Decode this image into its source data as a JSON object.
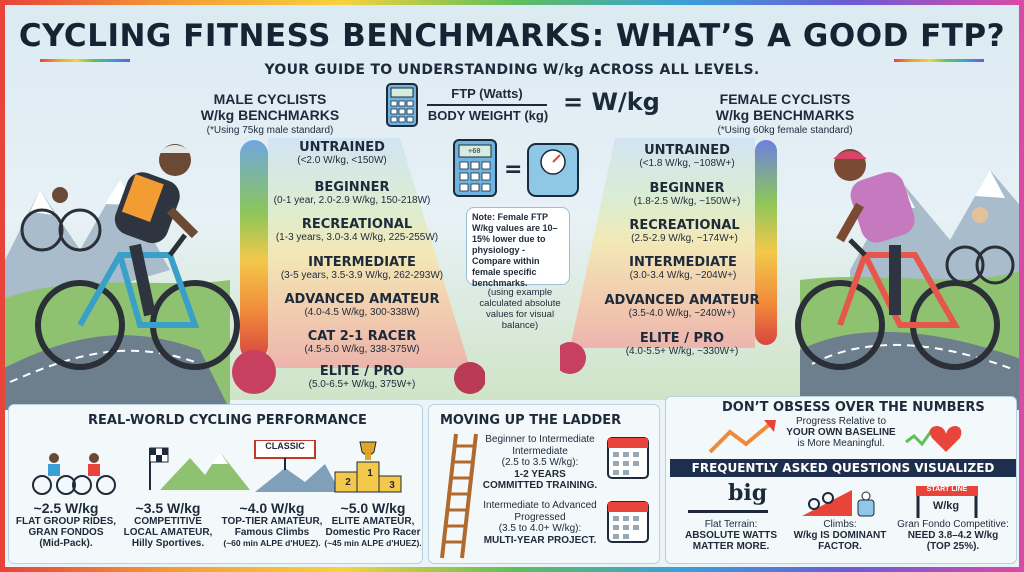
{
  "header": {
    "title": "CYCLING FITNESS BENCHMARKS: WHAT’S A GOOD FTP?",
    "subtitle": "YOUR GUIDE TO UNDERSTANDING W/kg ACROSS ALL LEVELS."
  },
  "formula": {
    "numerator": "FTP (Watts)",
    "denominator": "BODY WEIGHT (kg)",
    "result": "= W/kg",
    "mini_screen": "÷60"
  },
  "male": {
    "heading_1": "MALE CYCLISTS",
    "heading_2": "W/kg BENCHMARKS",
    "note": "(*Using 75kg male standard)",
    "levels": [
      {
        "name": "UNTRAINED",
        "detail": "(<2.0 W/kg, <150W)"
      },
      {
        "name": "BEGINNER",
        "detail": "(0-1 year, 2.0-2.9 W/kg, 150-218W)"
      },
      {
        "name": "RECREATIONAL",
        "detail": "(1-3 years, 3.0-3.4 W/kg, 225-255W)"
      },
      {
        "name": "INTERMEDIATE",
        "detail": "(3-5 years, 3.5-3.9 W/kg, 262-293W)"
      },
      {
        "name": "ADVANCED AMATEUR",
        "detail": "(4.0-4.5 W/kg, 300-338W)"
      },
      {
        "name": "CAT 2-1 RACER",
        "detail": "(4.5-5.0 W/kg, 338-375W)"
      },
      {
        "name": "ELITE / PRO",
        "detail": "(5.0-6.5+ W/kg, 375W+)"
      }
    ]
  },
  "female": {
    "heading_1": "FEMALE CYCLISTS",
    "heading_2": "W/kg BENCHMARKS",
    "note": "(*Using 60kg female standard)",
    "levels": [
      {
        "name": "UNTRAINED",
        "detail": "(<1.8 W/kg, ~108W+)"
      },
      {
        "name": "BEGINNER",
        "detail": "(1.8-2.5 W/kg, ~150W+)"
      },
      {
        "name": "RECREATIONAL",
        "detail": "(2.5-2.9 W/kg, ~174W+)"
      },
      {
        "name": "INTERMEDIATE",
        "detail": "(3.0-3.4 W/kg, ~204W+)"
      },
      {
        "name": "ADVANCED AMATEUR",
        "detail": "(3.5-4.0 W/kg, ~240W+)"
      },
      {
        "name": "ELITE / PRO",
        "detail": "(4.0-5.5+ W/kg, ~330W+)"
      }
    ]
  },
  "center": {
    "note": "Note: Female FTP W/kg values are 10–15% lower due to physiology - Compare within female specific benchmarks.",
    "example": "(using example calculated absolute values for visual balance)"
  },
  "performance": {
    "title": "REAL-WORLD CYCLING PERFORMANCE",
    "sign": "CLASSIC",
    "podium": [
      "2",
      "1",
      "3"
    ],
    "items": [
      {
        "value": "~2.5 W/kg",
        "line1": "FLAT GROUP RIDES,",
        "line2": "GRAN FONDOS",
        "line3": "(Mid-Pack)."
      },
      {
        "value": "~3.5 W/kg",
        "line1": "COMPETITIVE",
        "line2": "LOCAL AMATEUR,",
        "line3": "Hilly Sportives."
      },
      {
        "value": "~4.0 W/kg",
        "line1": "TOP-TIER AMATEUR,",
        "line2": "Famous Climbs",
        "line3": "(~60 min ALPE d'HUEZ)."
      },
      {
        "value": "~5.0 W/kg",
        "line1": "ELITE AMATEUR,",
        "line2": "Domestic Pro Racer",
        "line3": "(~45 min ALPE d'HUEZ)."
      }
    ]
  },
  "ladder": {
    "title": "MOVING UP THE LADDER",
    "block1": [
      "Beginner to Intermediate",
      "Intermediate",
      "(2.5 to 3.5 W/kg):",
      "1-2 YEARS",
      "COMMITTED TRAINING."
    ],
    "block2": [
      "Intermediate to Advanced",
      "Progressed",
      "(3.5 to 4.0+ W/kg):",
      "MULTI-YEAR PROJECT."
    ]
  },
  "obsess": {
    "title": "DON’T OBSESS OVER THE NUMBERS",
    "text": [
      "Progress Relative to",
      "YOUR OWN BASELINE",
      "is More Meaningful."
    ]
  },
  "faq": {
    "title": "FREQUENTLY ASKED QUESTIONS VISUALIZED",
    "big": "big",
    "wkg": "W/kg",
    "start_line": "START LINE",
    "items": [
      {
        "line1": "Flat Terrain:",
        "line2": "ABSOLUTE WATTS",
        "line3": "MATTER MORE."
      },
      {
        "line1": "Climbs:",
        "line2": "W/kg IS DOMINANT",
        "line3": "FACTOR."
      },
      {
        "line1": "Gran Fondo Competitive:",
        "line2": "NEED 3.8–4.2 W/kg",
        "line3": "(TOP 25%)."
      }
    ]
  },
  "colors": {
    "red": "#d9453f",
    "orange": "#f08a3a",
    "yellow": "#f4c84a",
    "green": "#8cc65a",
    "blue": "#6fb4e0",
    "navy": "#1e2f4d",
    "purple": "#c45a9a"
  }
}
